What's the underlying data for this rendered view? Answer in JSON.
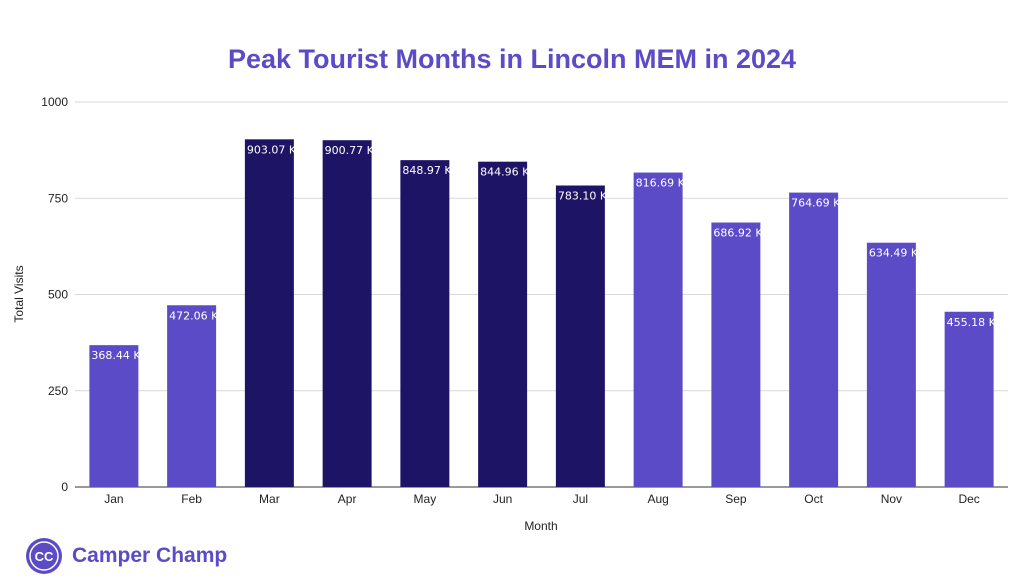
{
  "chart_data": {
    "type": "bar",
    "title": "Peak Tourist Months in Lincoln MEM in 2024",
    "xlabel": "Month",
    "ylabel": "Total Visits",
    "ylim": [
      0,
      1000
    ],
    "yticks": [
      0,
      250,
      500,
      750,
      1000
    ],
    "grid": true,
    "categories": [
      "Jan",
      "Feb",
      "Mar",
      "Apr",
      "May",
      "Jun",
      "Jul",
      "Aug",
      "Sep",
      "Oct",
      "Nov",
      "Dec"
    ],
    "values": [
      368.44,
      472.06,
      903.07,
      900.77,
      848.97,
      844.96,
      783.1,
      816.69,
      686.92,
      764.69,
      634.49,
      455.18
    ],
    "data_labels": [
      "368.44 K",
      "472.06 K",
      "903.07 K",
      "900.77 K",
      "848.97 K",
      "844.96 K",
      "783.10 K",
      "816.69 K",
      "686.92 K",
      "764.69 K",
      "634.49 K",
      "455.18 K"
    ],
    "highlighted": [
      false,
      false,
      true,
      true,
      true,
      true,
      true,
      false,
      false,
      false,
      false,
      false
    ],
    "colors": {
      "normal": "#5b4bc7",
      "highlight": "#1e1466",
      "title": "#5b4bc7",
      "grid": "#d9d9d9"
    }
  },
  "brand": {
    "name": "Camper Champ",
    "logo_icon": "cc-logo-icon",
    "logo_text": "CC"
  }
}
